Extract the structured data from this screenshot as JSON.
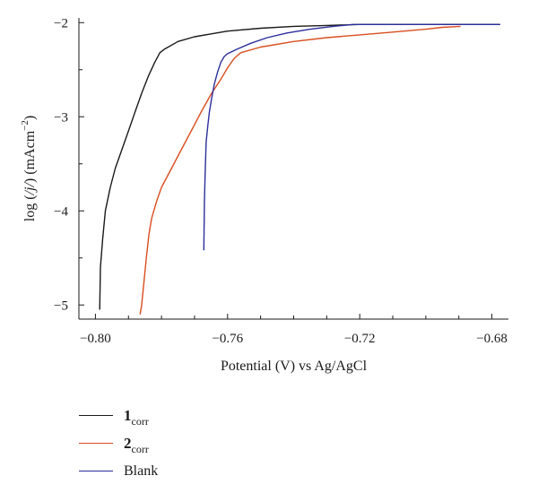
{
  "chart_data": {
    "type": "line",
    "xlabel": "Potential (V) vs Ag/AgCl",
    "ylabel_parts": {
      "prefix": "log (",
      "italic": "/j/",
      "mid": ") (mAcm",
      "sup": "−2",
      "suffix": ")"
    },
    "xlim": [
      -0.805,
      -0.675
    ],
    "ylim": [
      -5.15,
      -1.95
    ],
    "x_ticks": [
      -0.8,
      -0.76,
      -0.72,
      -0.68
    ],
    "x_tick_labels": [
      "−0.80",
      "−0.76",
      "−0.72",
      "−0.68"
    ],
    "y_ticks": [
      -5,
      -4,
      -3,
      -2
    ],
    "y_tick_labels": [
      "−5",
      "−4",
      "−3",
      "−2"
    ],
    "grid": false,
    "legend_position": "bottom-left",
    "series": [
      {
        "name_main": "1",
        "name_sub": "corr",
        "color": "#1a1a1a",
        "points": [
          [
            -0.7987,
            -5.05
          ],
          [
            -0.7985,
            -4.6
          ],
          [
            -0.7978,
            -4.3
          ],
          [
            -0.797,
            -4.0
          ],
          [
            -0.7955,
            -3.75
          ],
          [
            -0.794,
            -3.55
          ],
          [
            -0.792,
            -3.35
          ],
          [
            -0.79,
            -3.15
          ],
          [
            -0.788,
            -2.95
          ],
          [
            -0.786,
            -2.75
          ],
          [
            -0.784,
            -2.57
          ],
          [
            -0.782,
            -2.42
          ],
          [
            -0.7805,
            -2.32
          ],
          [
            -0.779,
            -2.28
          ],
          [
            -0.775,
            -2.2
          ],
          [
            -0.77,
            -2.15
          ],
          [
            -0.765,
            -2.12
          ],
          [
            -0.76,
            -2.09
          ],
          [
            -0.75,
            -2.06
          ],
          [
            -0.74,
            -2.04
          ],
          [
            -0.73,
            -2.03
          ],
          [
            -0.72,
            -2.02
          ],
          [
            -0.71,
            -2.02
          ],
          [
            -0.7,
            -2.02
          ],
          [
            -0.69,
            -2.02
          ],
          [
            -0.6775,
            -2.02
          ]
        ]
      },
      {
        "name_main": "2",
        "name_sub": "corr",
        "color": "#d94e1f",
        "points": [
          [
            -0.7865,
            -5.1
          ],
          [
            -0.786,
            -5.0
          ],
          [
            -0.7853,
            -4.75
          ],
          [
            -0.7846,
            -4.5
          ],
          [
            -0.7838,
            -4.25
          ],
          [
            -0.783,
            -4.08
          ],
          [
            -0.7815,
            -3.9
          ],
          [
            -0.78,
            -3.75
          ],
          [
            -0.777,
            -3.55
          ],
          [
            -0.774,
            -3.35
          ],
          [
            -0.771,
            -3.15
          ],
          [
            -0.768,
            -2.95
          ],
          [
            -0.765,
            -2.76
          ],
          [
            -0.762,
            -2.6
          ],
          [
            -0.76,
            -2.48
          ],
          [
            -0.758,
            -2.38
          ],
          [
            -0.756,
            -2.32
          ],
          [
            -0.75,
            -2.26
          ],
          [
            -0.74,
            -2.2
          ],
          [
            -0.73,
            -2.16
          ],
          [
            -0.72,
            -2.13
          ],
          [
            -0.71,
            -2.1
          ],
          [
            -0.7,
            -2.07
          ],
          [
            -0.695,
            -2.05
          ],
          [
            -0.6895,
            -2.04
          ]
        ]
      },
      {
        "name_main": "Blank",
        "name_sub": "",
        "color": "#2b2f9a",
        "points": [
          [
            -0.7672,
            -4.42
          ],
          [
            -0.767,
            -3.9
          ],
          [
            -0.7668,
            -3.6
          ],
          [
            -0.7665,
            -3.27
          ],
          [
            -0.766,
            -3.1
          ],
          [
            -0.7655,
            -2.95
          ],
          [
            -0.7648,
            -2.8
          ],
          [
            -0.764,
            -2.65
          ],
          [
            -0.763,
            -2.52
          ],
          [
            -0.762,
            -2.42
          ],
          [
            -0.761,
            -2.36
          ],
          [
            -0.76,
            -2.33
          ],
          [
            -0.757,
            -2.28
          ],
          [
            -0.753,
            -2.22
          ],
          [
            -0.748,
            -2.16
          ],
          [
            -0.742,
            -2.11
          ],
          [
            -0.735,
            -2.07
          ],
          [
            -0.728,
            -2.04
          ],
          [
            -0.722,
            -2.02
          ],
          [
            -0.715,
            -2.02
          ],
          [
            -0.7,
            -2.02
          ],
          [
            -0.69,
            -2.02
          ],
          [
            -0.6775,
            -2.02
          ]
        ]
      }
    ]
  }
}
